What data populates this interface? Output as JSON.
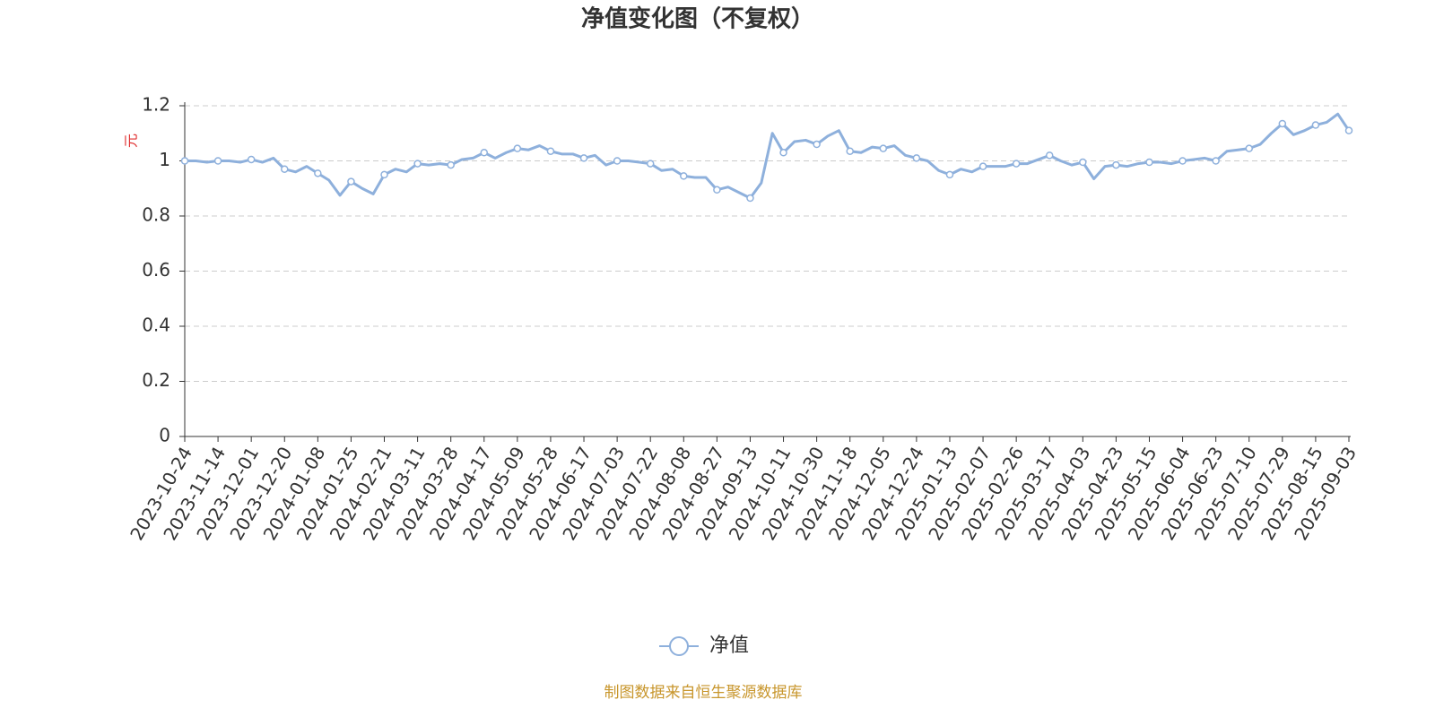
{
  "chart_data": {
    "type": "line",
    "title": "净值变化图（不复权）",
    "y_label": "元",
    "source": "制图数据来自恒生聚源数据库",
    "categories": [
      "2023-10-24",
      null,
      null,
      "2023-11-14",
      null,
      null,
      "2023-12-01",
      null,
      null,
      "2023-12-20",
      null,
      null,
      "2024-01-08",
      null,
      null,
      "2024-01-25",
      null,
      null,
      "2024-02-21",
      null,
      null,
      "2024-03-11",
      null,
      null,
      "2024-03-28",
      null,
      null,
      "2024-04-17",
      null,
      null,
      "2024-05-09",
      null,
      null,
      "2024-05-28",
      null,
      null,
      "2024-06-17",
      null,
      null,
      "2024-07-03",
      null,
      null,
      "2024-07-22",
      null,
      null,
      "2024-08-08",
      null,
      null,
      "2024-08-27",
      null,
      null,
      "2024-09-13",
      null,
      null,
      "2024-10-11",
      null,
      null,
      "2024-10-30",
      null,
      null,
      "2024-11-18",
      null,
      null,
      "2024-12-05",
      null,
      null,
      "2024-12-24",
      null,
      null,
      "2025-01-13",
      null,
      null,
      "2025-02-07",
      null,
      null,
      "2025-02-26",
      null,
      null,
      "2025-03-17",
      null,
      null,
      "2025-04-03",
      null,
      null,
      "2025-04-23",
      null,
      null,
      "2025-05-15",
      null,
      null,
      "2025-06-04",
      null,
      null,
      "2025-06-23",
      null,
      null,
      "2025-07-10",
      null,
      null,
      "2025-07-29",
      null,
      null,
      "2025-08-15",
      null,
      null,
      "2025-09-03"
    ],
    "series": [
      {
        "name": "净值",
        "color": "#8eb0dc",
        "values": [
          1.0,
          1.0,
          0.995,
          1.0,
          1.0,
          0.995,
          1.005,
          0.995,
          1.01,
          0.97,
          0.96,
          0.98,
          0.955,
          0.93,
          0.875,
          0.925,
          0.9,
          0.88,
          0.95,
          0.97,
          0.96,
          0.99,
          0.985,
          0.99,
          0.985,
          1.005,
          1.01,
          1.03,
          1.01,
          1.03,
          1.045,
          1.04,
          1.055,
          1.035,
          1.025,
          1.025,
          1.01,
          1.02,
          0.985,
          1.0,
          1.0,
          0.995,
          0.99,
          0.965,
          0.97,
          0.945,
          0.94,
          0.94,
          0.895,
          0.905,
          0.885,
          0.865,
          0.92,
          1.1,
          1.03,
          1.07,
          1.075,
          1.06,
          1.09,
          1.11,
          1.035,
          1.03,
          1.05,
          1.045,
          1.055,
          1.02,
          1.01,
          1.0,
          0.965,
          0.95,
          0.97,
          0.96,
          0.98,
          0.98,
          0.98,
          0.99,
          0.99,
          1.005,
          1.02,
          1.0,
          0.985,
          0.995,
          0.935,
          0.98,
          0.985,
          0.98,
          0.99,
          0.995,
          0.995,
          0.99,
          1.0,
          1.005,
          1.01,
          1.0,
          1.035,
          1.04,
          1.045,
          1.06,
          1.1,
          1.135,
          1.095,
          1.11,
          1.13,
          1.14,
          1.17,
          1.11
        ]
      }
    ],
    "ylim": [
      0,
      1.2
    ],
    "yticks": [
      0,
      0.2,
      0.4,
      0.6,
      0.8,
      1,
      1.2
    ],
    "grid": true,
    "legend": "bottom"
  }
}
